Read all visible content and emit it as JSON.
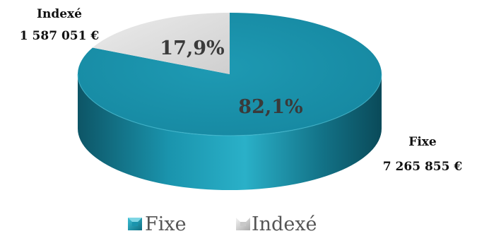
{
  "chart_data": {
    "type": "pie",
    "title": "",
    "slices": [
      {
        "name": "Fixe",
        "value_label": "7 265 855 €",
        "value": 7265855,
        "percent": 82.1,
        "percent_label": "82,1%",
        "color": "#1b8ea6"
      },
      {
        "name": "Indexé",
        "value_label": "1 587 051 €",
        "value": 1587051,
        "percent": 17.9,
        "percent_label": "17,9%",
        "color": "#d7d7d7"
      }
    ],
    "legend": {
      "position": "bottom",
      "items": [
        "Fixe",
        "Indexé"
      ]
    }
  }
}
